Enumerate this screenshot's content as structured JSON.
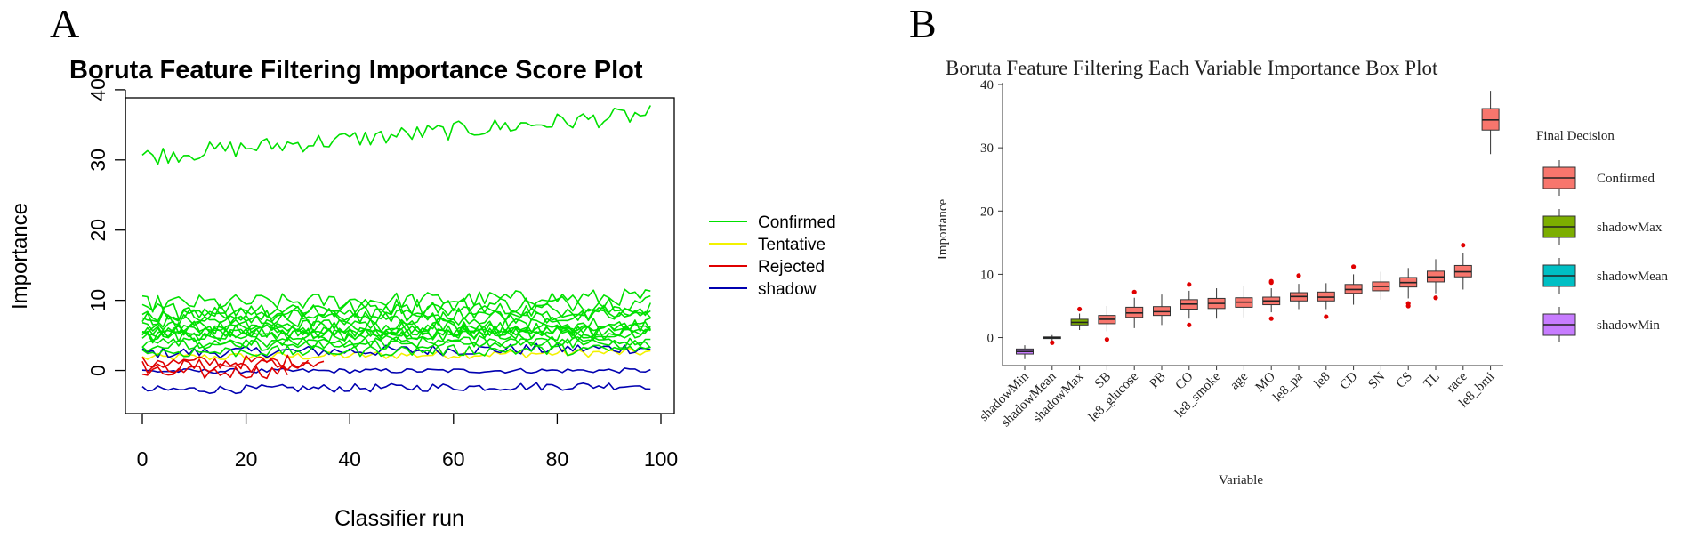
{
  "panels": {
    "a": {
      "letter": "A",
      "chart_data": {
        "type": "line",
        "title": "Boruta Feature Filtering Importance Score Plot",
        "xlabel": "Classifier run",
        "ylabel": "Importance",
        "xlim": [
          0,
          100
        ],
        "ylim": [
          -5,
          41
        ],
        "xticks": [
          "0",
          "20",
          "40",
          "60",
          "80",
          "100"
        ],
        "yticks": [
          "0",
          "10",
          "20",
          "30",
          "40"
        ],
        "legend": [
          {
            "label": "Confirmed",
            "color": "#00e000"
          },
          {
            "label": "Tentative",
            "color": "#f2f200"
          },
          {
            "label": "Rejected",
            "color": "#e00000"
          },
          {
            "label": "shadow",
            "color": "#0000b0"
          }
        ],
        "series_summary": [
          {
            "name": "Confirmed (le8_bmi)",
            "status": "Confirmed",
            "start": 30.5,
            "end": 36.5,
            "noise": 1.3
          },
          {
            "name": "Confirmed (race)",
            "status": "Confirmed",
            "start": 9.5,
            "end": 10.5,
            "noise": 1.2
          },
          {
            "name": "Confirmed (TL)",
            "status": "Confirmed",
            "start": 8.5,
            "end": 9.8,
            "noise": 1.2
          },
          {
            "name": "Confirmed (CS)",
            "status": "Confirmed",
            "start": 8.0,
            "end": 8.8,
            "noise": 1.1
          },
          {
            "name": "Confirmed (SN)",
            "status": "Confirmed",
            "start": 7.5,
            "end": 8.2,
            "noise": 1.0
          },
          {
            "name": "Confirmed (CD)",
            "status": "Confirmed",
            "start": 7.0,
            "end": 7.8,
            "noise": 1.0
          },
          {
            "name": "Confirmed (le8)",
            "status": "Confirmed",
            "start": 6.2,
            "end": 6.6,
            "noise": 1.0
          },
          {
            "name": "Confirmed (le8_pa)",
            "status": "Confirmed",
            "start": 6.0,
            "end": 6.5,
            "noise": 1.0
          },
          {
            "name": "Confirmed (MO)",
            "status": "Confirmed",
            "start": 5.5,
            "end": 5.9,
            "noise": 0.9
          },
          {
            "name": "Confirmed (age)",
            "status": "Confirmed",
            "start": 5.2,
            "end": 5.6,
            "noise": 0.9
          },
          {
            "name": "Confirmed (le8_smoke)",
            "status": "Confirmed",
            "start": 5.0,
            "end": 5.5,
            "noise": 0.9
          },
          {
            "name": "Confirmed (CO)",
            "status": "Confirmed",
            "start": 4.8,
            "end": 5.3,
            "noise": 0.9
          },
          {
            "name": "Confirmed (PB)",
            "status": "Confirmed",
            "start": 3.8,
            "end": 4.3,
            "noise": 0.8
          },
          {
            "name": "Confirmed (le8_glucose)",
            "status": "Confirmed",
            "start": 3.5,
            "end": 4.0,
            "noise": 0.8
          },
          {
            "name": "Confirmed (SB)",
            "status": "Confirmed",
            "start": 2.6,
            "end": 3.0,
            "noise": 0.8
          },
          {
            "name": "Tentative",
            "status": "Tentative",
            "start": 1.8,
            "end": 2.6,
            "noise": 0.6
          },
          {
            "name": "Rejected 1",
            "status": "Rejected",
            "start": 0.5,
            "end": 1.5,
            "noise": 1.0,
            "last_run": 32
          },
          {
            "name": "Rejected 2",
            "status": "Rejected",
            "start": -0.5,
            "end": 1.0,
            "noise": 1.0,
            "last_run": 28
          },
          {
            "name": "Rejected 3",
            "status": "Rejected",
            "start": 1.0,
            "end": 2.0,
            "noise": 1.0,
            "last_run": 35
          },
          {
            "name": "shadowMax",
            "status": "shadow",
            "start": 2.5,
            "end": 3.2,
            "noise": 0.8
          },
          {
            "name": "shadowMean",
            "status": "shadow",
            "start": -0.1,
            "end": 0.0,
            "noise": 0.35
          },
          {
            "name": "shadowMin",
            "status": "shadow",
            "start": -2.8,
            "end": -2.1,
            "noise": 0.6
          }
        ]
      }
    },
    "b": {
      "letter": "B",
      "chart_data": {
        "type": "boxplot",
        "title": "Boruta Feature Filtering Each Variable Importance Box Plot",
        "xlabel": "Variable",
        "ylabel": "Importance",
        "ylim": [
          -4,
          40
        ],
        "yticks": [
          "0",
          "10",
          "20",
          "30",
          "40"
        ],
        "legend_title": "Final Decision",
        "legend": [
          {
            "label": "Confirmed",
            "color": "#f8766d"
          },
          {
            "label": "shadowMax",
            "color": "#7cae00"
          },
          {
            "label": "shadowMean",
            "color": "#00bfc4"
          },
          {
            "label": "shadowMin",
            "color": "#c77cff"
          }
        ],
        "outlier_color": "#e00000",
        "boxes": [
          {
            "label": "shadowMin",
            "decision": "shadowMin",
            "whisker_low": -3.4,
            "q1": -2.6,
            "median": -2.2,
            "q3": -1.8,
            "whisker_high": -1.2,
            "outliers": []
          },
          {
            "label": "shadowMean",
            "decision": "shadowMean",
            "whisker_low": -0.5,
            "q1": -0.15,
            "median": 0.0,
            "q3": 0.1,
            "whisker_high": 0.4,
            "outliers": [
              -0.8
            ]
          },
          {
            "label": "shadowMax",
            "decision": "shadowMax",
            "whisker_low": 1.2,
            "q1": 2.0,
            "median": 2.4,
            "q3": 2.9,
            "whisker_high": 3.8,
            "outliers": [
              4.5
            ]
          },
          {
            "label": "SB",
            "decision": "Confirmed",
            "whisker_low": 1.0,
            "q1": 2.2,
            "median": 2.9,
            "q3": 3.5,
            "whisker_high": 5.0,
            "outliers": [
              -0.3
            ]
          },
          {
            "label": "le8_glucose",
            "decision": "Confirmed",
            "whisker_low": 1.5,
            "q1": 3.2,
            "median": 3.9,
            "q3": 4.8,
            "whisker_high": 6.3,
            "outliers": [
              7.2
            ]
          },
          {
            "label": "PB",
            "decision": "Confirmed",
            "whisker_low": 2.0,
            "q1": 3.5,
            "median": 4.1,
            "q3": 4.9,
            "whisker_high": 6.8,
            "outliers": []
          },
          {
            "label": "CO",
            "decision": "Confirmed",
            "whisker_low": 3.0,
            "q1": 4.5,
            "median": 5.3,
            "q3": 6.0,
            "whisker_high": 7.4,
            "outliers": [
              8.4,
              2.0
            ]
          },
          {
            "label": "le8_smoke",
            "decision": "Confirmed",
            "whisker_low": 3.0,
            "q1": 4.6,
            "median": 5.4,
            "q3": 6.2,
            "whisker_high": 7.8,
            "outliers": []
          },
          {
            "label": "age",
            "decision": "Confirmed",
            "whisker_low": 3.2,
            "q1": 4.8,
            "median": 5.6,
            "q3": 6.3,
            "whisker_high": 8.2,
            "outliers": []
          },
          {
            "label": "MO",
            "decision": "Confirmed",
            "whisker_low": 4.0,
            "q1": 5.2,
            "median": 5.8,
            "q3": 6.4,
            "whisker_high": 7.8,
            "outliers": [
              8.7,
              8.9,
              3.0
            ]
          },
          {
            "label": "le8_pa",
            "decision": "Confirmed",
            "whisker_low": 4.5,
            "q1": 5.8,
            "median": 6.5,
            "q3": 7.1,
            "whisker_high": 8.5,
            "outliers": [
              9.8
            ]
          },
          {
            "label": "le8",
            "decision": "Confirmed",
            "whisker_low": 4.5,
            "q1": 5.8,
            "median": 6.4,
            "q3": 7.2,
            "whisker_high": 8.6,
            "outliers": [
              3.3
            ]
          },
          {
            "label": "CD",
            "decision": "Confirmed",
            "whisker_low": 5.2,
            "q1": 7.0,
            "median": 7.6,
            "q3": 8.4,
            "whisker_high": 10.0,
            "outliers": [
              11.2
            ]
          },
          {
            "label": "SN",
            "decision": "Confirmed",
            "whisker_low": 6.0,
            "q1": 7.4,
            "median": 8.1,
            "q3": 8.8,
            "whisker_high": 10.4,
            "outliers": []
          },
          {
            "label": "CS",
            "decision": "Confirmed",
            "whisker_low": 6.2,
            "q1": 8.0,
            "median": 8.7,
            "q3": 9.5,
            "whisker_high": 11.0,
            "outliers": [
              5.0,
              5.4
            ]
          },
          {
            "label": "TL",
            "decision": "Confirmed",
            "whisker_low": 7.0,
            "q1": 8.8,
            "median": 9.6,
            "q3": 10.5,
            "whisker_high": 12.4,
            "outliers": [
              6.3
            ]
          },
          {
            "label": "race",
            "decision": "Confirmed",
            "whisker_low": 7.6,
            "q1": 9.6,
            "median": 10.4,
            "q3": 11.4,
            "whisker_high": 13.4,
            "outliers": [
              14.6
            ]
          },
          {
            "label": "le8_bmi",
            "decision": "Confirmed",
            "whisker_low": 29.0,
            "q1": 32.8,
            "median": 34.4,
            "q3": 36.2,
            "whisker_high": 39.0,
            "outliers": []
          }
        ]
      }
    }
  }
}
